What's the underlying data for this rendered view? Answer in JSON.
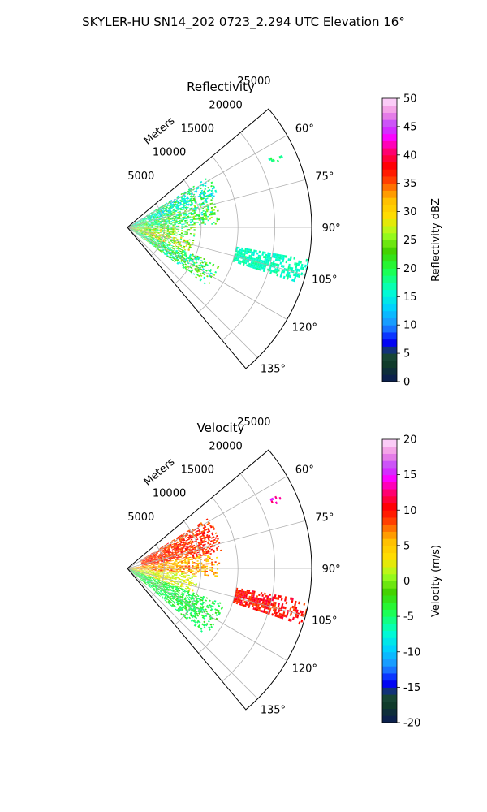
{
  "figure": {
    "suptitle": "SKYLER-HU  SN14_202  0723_2.294 UTC Elevation 16°"
  },
  "chart_data": [
    {
      "type": "heatmap",
      "title": "Reflectivity",
      "radial_axis_label": "Meters",
      "r_ticks": [
        5000,
        10000,
        15000,
        20000,
        25000
      ],
      "r_tick_labels": [
        "5000",
        "10000",
        "15000",
        "20000",
        "25000"
      ],
      "r_max": 25000,
      "theta_range_deg": [
        50,
        140
      ],
      "theta_ticks": [
        60,
        75,
        90,
        105,
        120,
        135
      ],
      "theta_tick_labels": [
        "60°",
        "75°",
        "90°",
        "105°",
        "120°",
        "135°"
      ],
      "grid": true,
      "colorbar": {
        "label": "Reflectivity dBZ",
        "min": 0,
        "max": 50,
        "ticks": [
          0,
          5,
          10,
          15,
          20,
          25,
          30,
          35,
          40,
          45,
          50
        ],
        "tick_labels": [
          "0",
          "5",
          "10",
          "15",
          "20",
          "25",
          "30",
          "35",
          "40",
          "45",
          "50"
        ]
      },
      "field_description_units": "dBZ",
      "echo_regions": [
        {
          "theta": [
            58,
            72
          ],
          "r": [
            0,
            13000
          ],
          "value_range": [
            12,
            22
          ]
        },
        {
          "theta": [
            72,
            88
          ],
          "r": [
            0,
            12500
          ],
          "value_range": [
            14,
            27
          ]
        },
        {
          "theta": [
            88,
            100
          ],
          "r": [
            0,
            9000
          ],
          "value_range": [
            16,
            30
          ]
        },
        {
          "theta": [
            100,
            112
          ],
          "r": [
            0,
            9000
          ],
          "value_range": [
            18,
            34
          ]
        },
        {
          "theta": [
            112,
            126
          ],
          "r": [
            0,
            13500
          ],
          "value_range": [
            14,
            26
          ]
        },
        {
          "theta": [
            100,
            108
          ],
          "r": [
            15000,
            25000
          ],
          "value_range": [
            15,
            18
          ]
        },
        {
          "theta": [
            64,
            66
          ],
          "r": [
            21000,
            23000
          ],
          "value_range": [
            16,
            20
          ]
        }
      ]
    },
    {
      "type": "heatmap",
      "title": "Velocity",
      "radial_axis_label": "Meters",
      "r_ticks": [
        5000,
        10000,
        15000,
        20000,
        25000
      ],
      "r_tick_labels": [
        "5000",
        "10000",
        "15000",
        "20000",
        "25000"
      ],
      "r_max": 25000,
      "theta_range_deg": [
        50,
        140
      ],
      "theta_ticks": [
        60,
        75,
        90,
        105,
        120,
        135
      ],
      "theta_tick_labels": [
        "60°",
        "75°",
        "90°",
        "105°",
        "120°",
        "135°"
      ],
      "grid": true,
      "colorbar": {
        "label": "Velocity (m/s)",
        "min": -20,
        "max": 20,
        "ticks": [
          -20,
          -15,
          -10,
          -5,
          0,
          5,
          10,
          15,
          20
        ],
        "tick_labels": [
          "-20",
          "-15",
          "-10",
          "-5",
          "0",
          "5",
          "10",
          "15",
          "20"
        ]
      },
      "field_description_units": "m/s",
      "echo_regions": [
        {
          "theta": [
            58,
            80
          ],
          "r": [
            2000,
            13000
          ],
          "value_range": [
            7,
            11
          ]
        },
        {
          "theta": [
            80,
            95
          ],
          "r": [
            0,
            12500
          ],
          "value_range": [
            3,
            9
          ]
        },
        {
          "theta": [
            95,
            110
          ],
          "r": [
            0,
            9500
          ],
          "value_range": [
            0,
            4
          ]
        },
        {
          "theta": [
            110,
            130
          ],
          "r": [
            0,
            14000
          ],
          "value_range": [
            -6,
            -2
          ]
        },
        {
          "theta": [
            100,
            108
          ],
          "r": [
            15000,
            25000
          ],
          "value_range": [
            8,
            12
          ]
        },
        {
          "theta": [
            64,
            66
          ],
          "r": [
            21000,
            23000
          ],
          "value_range": [
            12,
            16
          ]
        }
      ]
    }
  ]
}
